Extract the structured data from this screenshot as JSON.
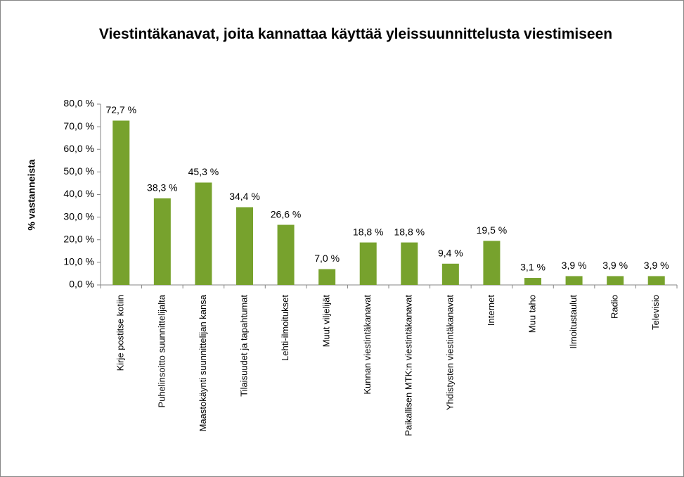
{
  "chart_data": {
    "type": "bar",
    "title": "Viestintäkanavat, joita kannattaa käyttää yleissuunnittelusta viestimiseen",
    "y_label": "% vastanneista",
    "categories": [
      "Kirje postitse kotiin",
      "Puhelinsoitto suunnittelijalta",
      "Maastokäynti suunnittelijan kansa",
      "Tilaisuudet ja tapahtumat",
      "Lehti-ilmoitukset",
      "Muut viljelijät",
      "Kunnan viestintäkanavat",
      "Paikallisen MTK:n viestintäkanavat",
      "Yhdistysten viestintäkanavat",
      "Internet",
      "Muu taho",
      "Ilmoitustaulut",
      "Radio",
      "Televisio"
    ],
    "values": [
      72.7,
      38.3,
      45.3,
      34.4,
      26.6,
      7.0,
      18.8,
      18.8,
      9.4,
      19.5,
      3.1,
      3.9,
      3.9,
      3.9
    ],
    "value_labels": [
      "72,7 %",
      "38,3 %",
      "45,3 %",
      "34,4 %",
      "26,6 %",
      "7,0 %",
      "18,8 %",
      "18,8 %",
      "9,4 %",
      "19,5 %",
      "3,1 %",
      "3,9 %",
      "3,9 %",
      "3,9 %"
    ],
    "color": "#77a22d",
    "ylim": [
      0,
      80
    ],
    "yticks": [
      {
        "value": 0,
        "label": "0,0 %"
      },
      {
        "value": 10,
        "label": "10,0 %"
      },
      {
        "value": 20,
        "label": "20,0 %"
      },
      {
        "value": 30,
        "label": "30,0 %"
      },
      {
        "value": 40,
        "label": "40,0 %"
      },
      {
        "value": 50,
        "label": "50,0 %"
      },
      {
        "value": 60,
        "label": "60,0 %"
      },
      {
        "value": 70,
        "label": "70,0 %"
      },
      {
        "value": 80,
        "label": "80,0 %"
      }
    ],
    "grid": false
  }
}
